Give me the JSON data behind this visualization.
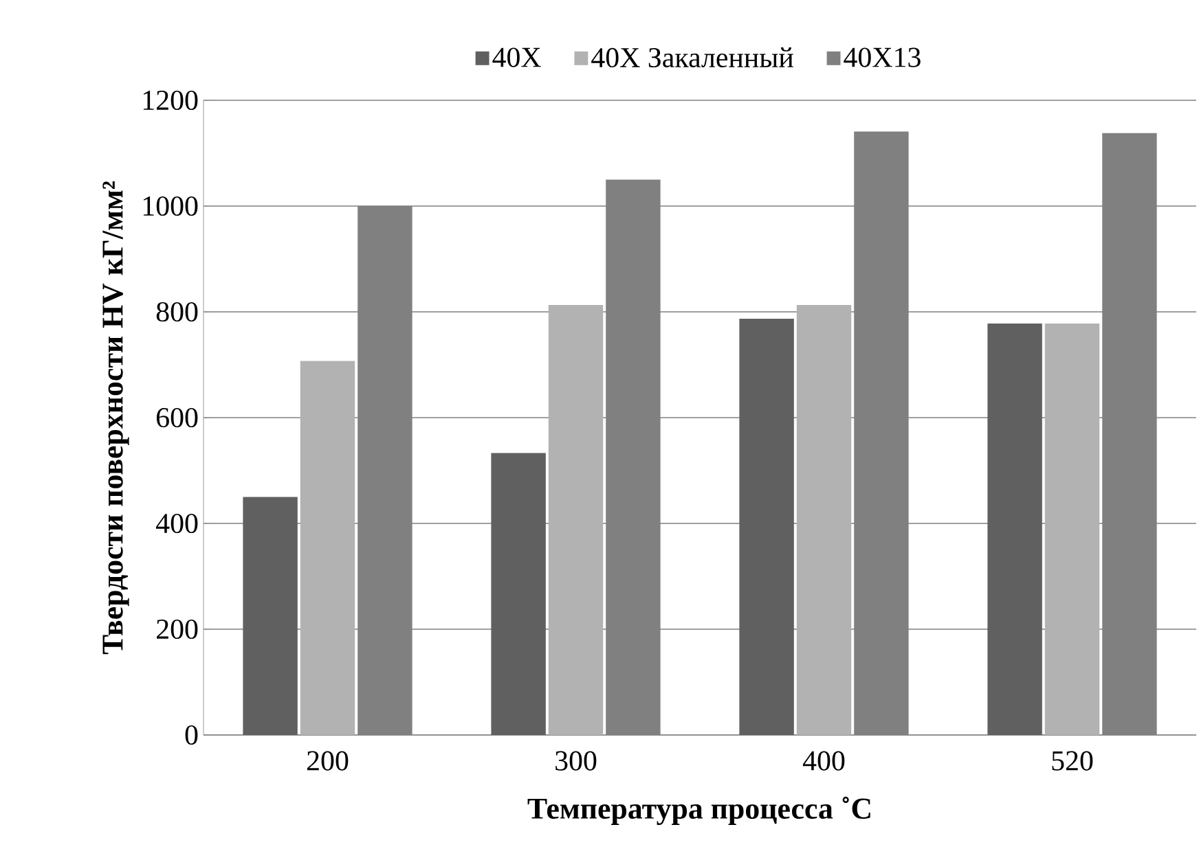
{
  "chart_data": {
    "type": "bar",
    "xlabel": "Температура процесса ˚C",
    "ylabel": "Твердости поверхности HV кГ/мм²",
    "categories": [
      "200",
      "300",
      "400",
      "520"
    ],
    "series": [
      {
        "name": "40X",
        "color": "#606060",
        "values": [
          450,
          533,
          787,
          778
        ]
      },
      {
        "name": "40X Закаленный",
        "color": "#b2b2b2",
        "values": [
          707,
          813,
          813,
          778
        ]
      },
      {
        "name": "40X13",
        "color": "#808080",
        "values": [
          1000,
          1050,
          1141,
          1138
        ]
      }
    ],
    "ylim": [
      0,
      1200
    ],
    "yticks": [
      0,
      200,
      400,
      600,
      800,
      1000,
      1200
    ],
    "grid": "y",
    "legend": "top"
  }
}
